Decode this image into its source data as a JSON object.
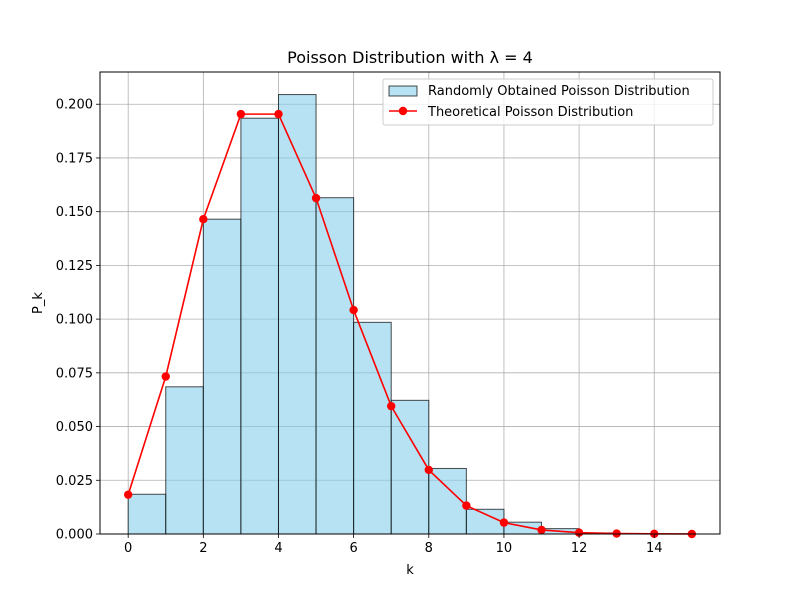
{
  "chart_data": {
    "type": "bar",
    "title": "Poisson Distribution with λ = 4",
    "xlabel": "k",
    "ylabel": "P_k",
    "xlim": [
      -0.75,
      15.75
    ],
    "ylim": [
      0,
      0.215
    ],
    "xticks": [
      0,
      2,
      4,
      6,
      8,
      10,
      12,
      14
    ],
    "yticks": [
      0.0,
      0.025,
      0.05,
      0.075,
      0.1,
      0.125,
      0.15,
      0.175,
      0.2
    ],
    "ytick_labels": [
      "0.000",
      "0.025",
      "0.050",
      "0.075",
      "0.100",
      "0.125",
      "0.150",
      "0.175",
      "0.200"
    ],
    "grid": true,
    "legend_position": "top-right",
    "histogram": {
      "name": "Randomly Obtained Poisson Distribution",
      "color": "#87CEEB",
      "edge_color": "#000000",
      "bin_edges": [
        0,
        1,
        2,
        3,
        4,
        5,
        6,
        7,
        8,
        9,
        10,
        11,
        12,
        13,
        14,
        15
      ],
      "values": [
        0.0185,
        0.0685,
        0.1465,
        0.1935,
        0.2045,
        0.1565,
        0.0985,
        0.0622,
        0.0305,
        0.0115,
        0.0055,
        0.0025,
        0.0005,
        0.0002,
        0.0001
      ]
    },
    "line": {
      "name": "Theoretical Poisson Distribution",
      "color": "#FF0000",
      "x": [
        0,
        1,
        2,
        3,
        4,
        5,
        6,
        7,
        8,
        9,
        10,
        11,
        12,
        13,
        14,
        15
      ],
      "y": [
        0.0183,
        0.0733,
        0.1465,
        0.1954,
        0.1954,
        0.1563,
        0.1042,
        0.0595,
        0.0298,
        0.0132,
        0.0053,
        0.0019,
        0.0006,
        0.0002,
        0.0001,
        0.0
      ]
    }
  }
}
